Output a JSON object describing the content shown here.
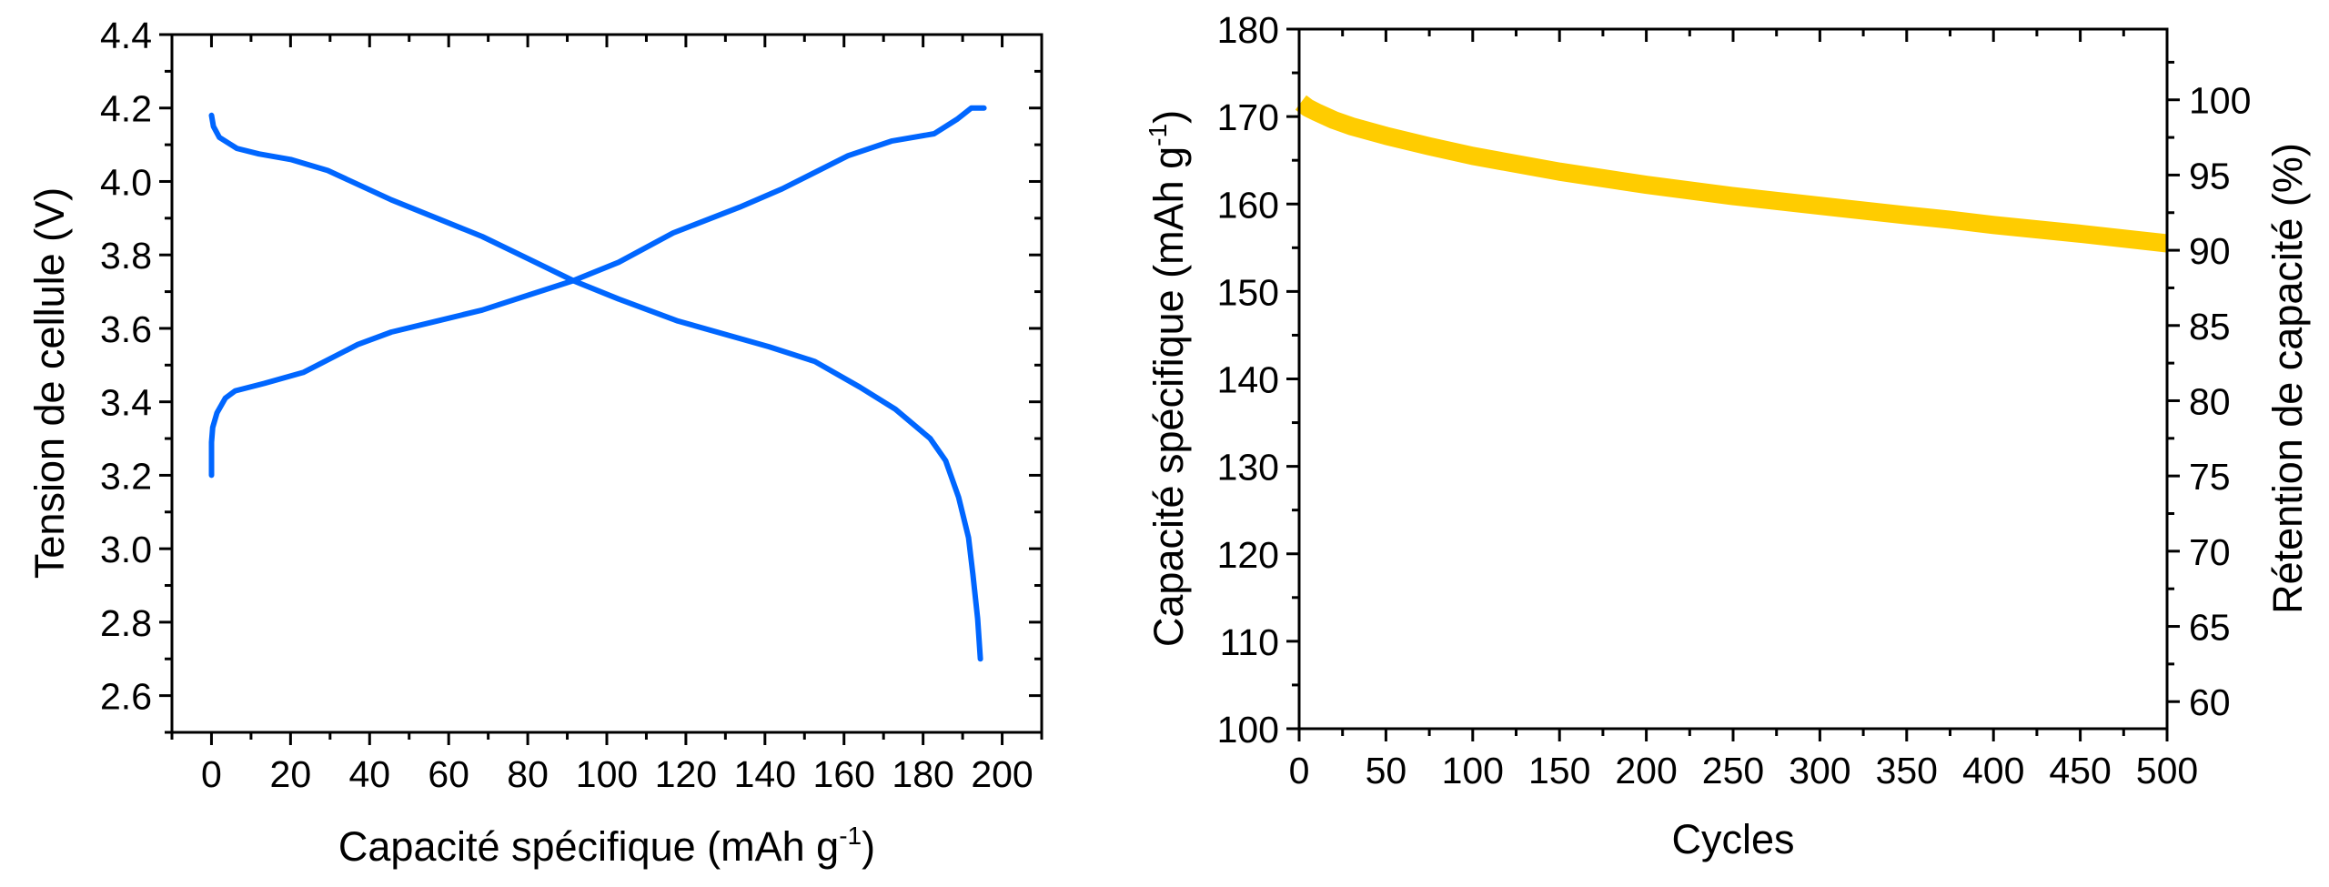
{
  "chart_data": [
    {
      "id": "voltage-profile",
      "type": "line",
      "title": "",
      "xlabel": "Capacité spécifique (mAh g",
      "xlabel_sup": "-1",
      "xlabel_end": ")",
      "ylabel": "Tension de cellule (V)",
      "xlim": [
        -10,
        210
      ],
      "ylim": [
        2.5,
        4.4
      ],
      "x_ticks": [
        0,
        20,
        40,
        60,
        80,
        100,
        120,
        140,
        160,
        180,
        200
      ],
      "x_tick_labels": [
        "0",
        "20",
        "40",
        "60",
        "80",
        "100",
        "120",
        "140",
        "160",
        "180",
        "200"
      ],
      "x_minor_step": 10,
      "y_ticks": [
        2.6,
        2.8,
        3.0,
        3.2,
        3.4,
        3.6,
        3.8,
        4.0,
        4.2,
        4.4
      ],
      "y_tick_labels": [
        "2.6",
        "2.8",
        "3.0",
        "3.2",
        "3.4",
        "3.6",
        "3.8",
        "4.0",
        "4.2",
        "4.4"
      ],
      "y_minor_step": 0.1,
      "grid": false,
      "legend": "none",
      "series": [
        {
          "name": "charge",
          "color": "#0066FF",
          "x": [
            0,
            0,
            0.3,
            1.4,
            3.5,
            6,
            13.3,
            23.2,
            37,
            45.5,
            57,
            68.5,
            80,
            91.5,
            103,
            116.8,
            133.6,
            144.4,
            161,
            172,
            182.8,
            188.7,
            192.2,
            195.4
          ],
          "y": [
            3.2,
            3.29,
            3.33,
            3.37,
            3.41,
            3.43,
            3.45,
            3.48,
            3.556,
            3.59,
            3.62,
            3.65,
            3.69,
            3.73,
            3.78,
            3.86,
            3.93,
            3.98,
            4.07,
            4.11,
            4.13,
            4.17,
            4.2,
            4.2
          ]
        },
        {
          "name": "discharge",
          "color": "#0066FF",
          "x": [
            0,
            0.5,
            2,
            6.4,
            12,
            20,
            29.4,
            45.5,
            57,
            68.5,
            80,
            91.5,
            103,
            118,
            141,
            152.6,
            164,
            173,
            181.8,
            185.7,
            189,
            191.5,
            192.6,
            193.8,
            194.5
          ],
          "y": [
            4.18,
            4.15,
            4.12,
            4.09,
            4.075,
            4.06,
            4.03,
            3.95,
            3.9,
            3.85,
            3.79,
            3.73,
            3.68,
            3.62,
            3.55,
            3.51,
            3.44,
            3.38,
            3.3,
            3.24,
            3.14,
            3.03,
            2.93,
            2.81,
            2.7
          ]
        }
      ]
    },
    {
      "id": "cycling",
      "type": "line",
      "title": "",
      "xlabel": "Cycles",
      "ylabel": "Capacité spécifique (mAh g",
      "ylabel_sup": "-1",
      "ylabel_end": ")",
      "y2label": "Rétention de capacité (%)",
      "xlim": [
        0,
        500
      ],
      "ylim": [
        100,
        180
      ],
      "y2lim": [
        58.2,
        104.7
      ],
      "x_ticks": [
        0,
        50,
        100,
        150,
        200,
        250,
        300,
        350,
        400,
        450,
        500
      ],
      "x_tick_labels": [
        "0",
        "50",
        "100",
        "150",
        "200",
        "250",
        "300",
        "350",
        "400",
        "450",
        "500"
      ],
      "x_minor_step": 25,
      "y_ticks": [
        100,
        110,
        120,
        130,
        140,
        150,
        160,
        170,
        180
      ],
      "y_tick_labels": [
        "100",
        "110",
        "120",
        "130",
        "140",
        "150",
        "160",
        "170",
        "180"
      ],
      "y_minor_step": 5,
      "y2_ticks": [
        60,
        65,
        70,
        75,
        80,
        85,
        90,
        95,
        100
      ],
      "y2_tick_labels": [
        "60",
        "65",
        "70",
        "75",
        "80",
        "85",
        "90",
        "95",
        "100"
      ],
      "y2_minor_step": 2.5,
      "grid": false,
      "legend": "none",
      "series": [
        {
          "name": "specific-capacity",
          "color": "#FFCC00",
          "x": [
            1,
            5,
            10,
            20,
            30,
            50,
            75,
            100,
            150,
            200,
            250,
            300,
            350,
            375,
            400,
            450,
            500
          ],
          "y": [
            171.6,
            171.0,
            170.5,
            169.6,
            168.9,
            167.8,
            166.6,
            165.5,
            163.7,
            162.2,
            160.9,
            159.8,
            158.7,
            158.2,
            157.6,
            156.6,
            155.5
          ]
        }
      ]
    }
  ]
}
